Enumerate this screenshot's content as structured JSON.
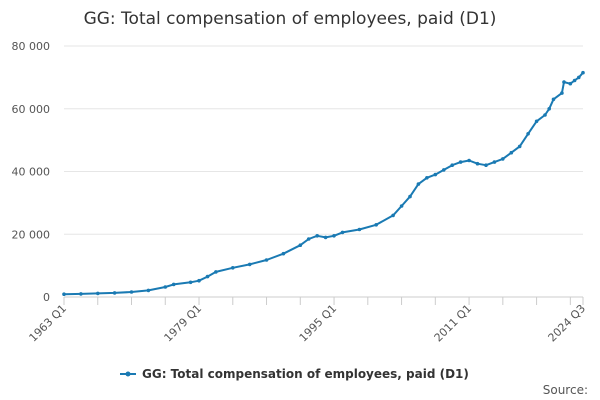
{
  "chart_data": {
    "type": "line",
    "title": "GG: Total compensation of employees, paid (D1)",
    "xlabel": "",
    "ylabel": "",
    "ylim": [
      0,
      80000
    ],
    "y_ticks": [
      "0",
      "20 000",
      "40 000",
      "60 000",
      "80 000"
    ],
    "y_tick_values": [
      0,
      20000,
      40000,
      60000,
      80000
    ],
    "x_range": [
      "1963 Q1",
      "2024 Q3"
    ],
    "x_tick_labels": [
      "1963 Q1",
      "1979 Q1",
      "1995 Q1",
      "2011 Q1",
      "2024 Q3"
    ],
    "grid": "horizontal",
    "legend_position": "bottom",
    "series": [
      {
        "name": "GG: Total compensation of employees, paid (D1)",
        "color": "#1a7ab3",
        "marker": "circle",
        "points": [
          [
            "1963 Q1",
            900
          ],
          [
            "1965 Q1",
            1000
          ],
          [
            "1967 Q1",
            1150
          ],
          [
            "1969 Q1",
            1300
          ],
          [
            "1971 Q1",
            1600
          ],
          [
            "1973 Q1",
            2100
          ],
          [
            "1975 Q1",
            3200
          ],
          [
            "1976 Q1",
            4000
          ],
          [
            "1978 Q1",
            4700
          ],
          [
            "1979 Q1",
            5200
          ],
          [
            "1980 Q1",
            6500
          ],
          [
            "1981 Q1",
            8000
          ],
          [
            "1983 Q1",
            9300
          ],
          [
            "1985 Q1",
            10400
          ],
          [
            "1987 Q1",
            11800
          ],
          [
            "1989 Q1",
            13800
          ],
          [
            "1991 Q1",
            16500
          ],
          [
            "1992 Q1",
            18500
          ],
          [
            "1993 Q1",
            19500
          ],
          [
            "1994 Q1",
            19000
          ],
          [
            "1995 Q1",
            19500
          ],
          [
            "1996 Q1",
            20600
          ],
          [
            "1998 Q1",
            21500
          ],
          [
            "2000 Q1",
            23000
          ],
          [
            "2002 Q1",
            26000
          ],
          [
            "2003 Q1",
            29000
          ],
          [
            "2004 Q1",
            32000
          ],
          [
            "2005 Q1",
            36000
          ],
          [
            "2006 Q1",
            38000
          ],
          [
            "2007 Q1",
            39000
          ],
          [
            "2008 Q1",
            40500
          ],
          [
            "2009 Q1",
            42000
          ],
          [
            "2010 Q1",
            43000
          ],
          [
            "2011 Q1",
            43500
          ],
          [
            "2012 Q1",
            42500
          ],
          [
            "2013 Q1",
            42000
          ],
          [
            "2014 Q1",
            43000
          ],
          [
            "2015 Q1",
            44000
          ],
          [
            "2016 Q1",
            46000
          ],
          [
            "2017 Q1",
            48000
          ],
          [
            "2018 Q1",
            52000
          ],
          [
            "2019 Q1",
            56000
          ],
          [
            "2020 Q1",
            58000
          ],
          [
            "2020 Q3",
            60000
          ],
          [
            "2021 Q1",
            63000
          ],
          [
            "2022 Q1",
            65000
          ],
          [
            "2022 Q2",
            68500
          ],
          [
            "2023 Q1",
            68000
          ],
          [
            "2023 Q3",
            69000
          ],
          [
            "2024 Q1",
            70000
          ],
          [
            "2024 Q3",
            71500
          ]
        ]
      }
    ]
  },
  "legend": {
    "label": "GG: Total compensation of employees, paid (D1)"
  },
  "footer": {
    "source_label": "Source:"
  }
}
